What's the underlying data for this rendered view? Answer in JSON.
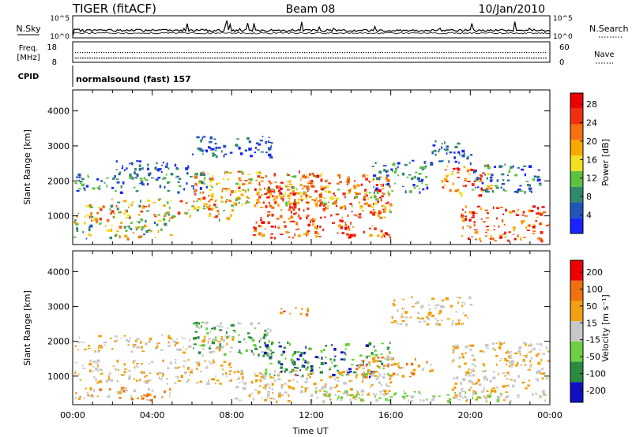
{
  "header": {
    "radar": "TIGER (fitACF)",
    "beam": "Beam 08",
    "date": "10/Jan/2010"
  },
  "top_panels": {
    "nsky_label": "N.Sky",
    "nsearch_label": "N.Search",
    "nsky_ticks": [
      "10^5",
      "10^0"
    ],
    "nsearch_ticks": [
      "10^5",
      "10^0"
    ],
    "freq_label_1": "Freq.",
    "freq_label_2": "[MHz]",
    "freq_ticks": [
      "18",
      "8"
    ],
    "nave_label": "Nave",
    "nave_ticks": [
      "60",
      "0"
    ],
    "cpid_label": "CPID",
    "cpid_text": "normalsound (fast) 157"
  },
  "chart_data": [
    {
      "type": "heatmap",
      "title": "",
      "ylabel": "Slant Range [km]",
      "ylim": [
        180,
        4600
      ],
      "y_ticks": [
        "1000",
        "2000",
        "3000",
        "4000"
      ],
      "xlim_hours": [
        0,
        24
      ],
      "colorbar_label": "Power [dB]",
      "colorbar_ticks": [
        "4",
        "8",
        "12",
        "16",
        "20",
        "24",
        "28"
      ],
      "colors": [
        "#1a22ff",
        "#2255b8",
        "#2f8a6a",
        "#5cc040",
        "#f0e020",
        "#f7a800",
        "#f47010",
        "#f03010",
        "#ee0000"
      ]
    },
    {
      "type": "heatmap",
      "title": "",
      "ylabel": "Slant Range [km]",
      "ylim": [
        180,
        4600
      ],
      "y_ticks": [
        "1000",
        "2000",
        "3000",
        "4000"
      ],
      "xlim_hours": [
        0,
        24
      ],
      "xlabel": "Time UT",
      "x_ticks": [
        "00:00",
        "04:00",
        "08:00",
        "12:00",
        "16:00",
        "20:00",
        "00:00"
      ],
      "colorbar_label": "Velocity [m s⁻¹]",
      "colorbar_ticks": [
        "200",
        "100",
        "50",
        "15",
        "-15",
        "-50",
        "-100",
        "-200"
      ],
      "colors": [
        "#1010c0",
        "#2a8a40",
        "#6cd040",
        "#c8c8c8",
        "#f0a010",
        "#f07010",
        "#ee0000"
      ]
    }
  ]
}
